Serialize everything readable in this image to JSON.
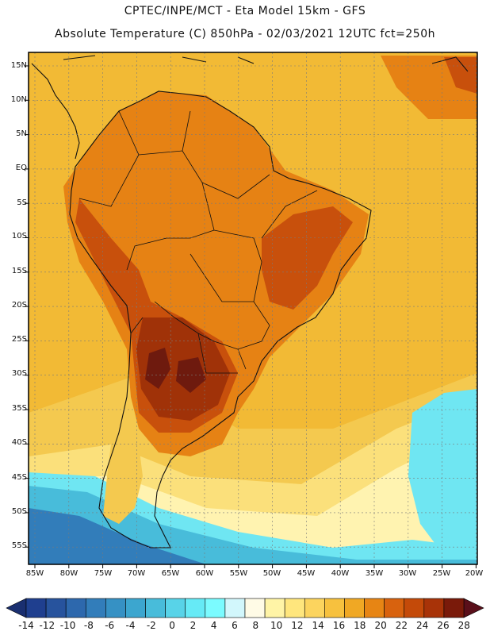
{
  "header": {
    "line1": "CPTEC/INPE/MCT  -   Eta Model 15km  -  GFS",
    "line2": "Absolute Temperature (C) 850hPa - 02/03/2021 12UTC fct=250h"
  },
  "axes": {
    "lat_labels": [
      "15N",
      "10N",
      "5N",
      "EQ",
      "5S",
      "10S",
      "15S",
      "20S",
      "25S",
      "30S",
      "35S",
      "40S",
      "45S",
      "50S",
      "55S"
    ],
    "lon_labels": [
      "85W",
      "80W",
      "75W",
      "70W",
      "65W",
      "60W",
      "55W",
      "50W",
      "45W",
      "40W",
      "35W",
      "30W",
      "25W",
      "20W"
    ]
  },
  "colorbar": {
    "labels": [
      "-14",
      "-12",
      "-10",
      "-8",
      "-6",
      "-4",
      "-2",
      "0",
      "2",
      "4",
      "6",
      "8",
      "10",
      "12",
      "14",
      "16",
      "18",
      "20",
      "22",
      "24",
      "26",
      "28"
    ],
    "colors": [
      "#1f3f8f",
      "#27539d",
      "#2d68ad",
      "#327dba",
      "#3691c4",
      "#3ca6cf",
      "#48bcda",
      "#58d3e8",
      "#66eaf6",
      "#7bfbff",
      "#d2f7fc",
      "#fffbe6",
      "#fff4a6",
      "#ffe67d",
      "#fcd45e",
      "#f7c13e",
      "#f0a824",
      "#e78514",
      "#d8620e",
      "#c44a09",
      "#a83308",
      "#7a1a0a"
    ],
    "under_color": "#1a2f70",
    "over_color": "#5a0f1a"
  },
  "map_colors": {
    "ocean_warm": "#f2ba35",
    "ocean_mid": "#f4c94f",
    "ocean_light": "#fbe07b",
    "ocean_pale": "#fff3b0",
    "hot_orange": "#e68214",
    "hot_red": "#c8500c",
    "hot_deep": "#a03208",
    "hot_core": "#6e1a0e",
    "cold_cyan": "#6fe6f2",
    "cold_blue1": "#48bcda",
    "cold_blue2": "#327dba",
    "cold_blue3": "#27539d",
    "coast": "#111111",
    "grid": "#7a7a7a"
  }
}
